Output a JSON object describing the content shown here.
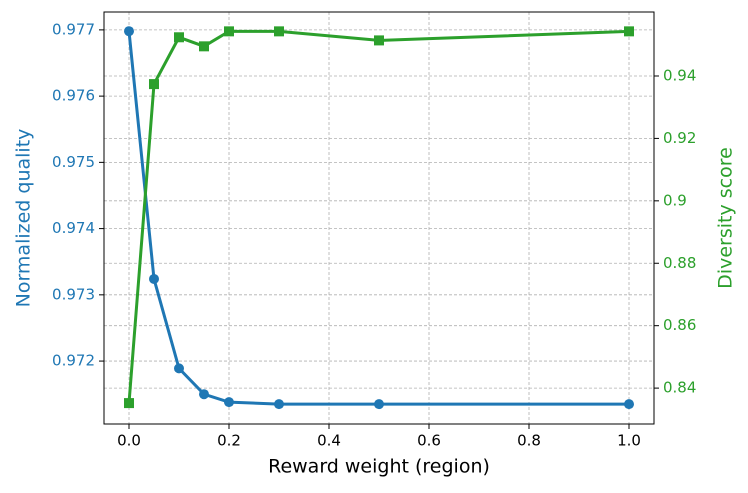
{
  "chart_data": {
    "type": "line",
    "xlabel": "Reward weight (region)",
    "ylabel": "Normalized quality",
    "y2label": "Diversity score",
    "x": [
      0,
      0.05,
      0.1,
      0.15,
      0.2,
      0.3,
      0.5,
      1.0
    ],
    "series": [
      {
        "color": "#1f77b4",
        "marker": "circle",
        "values": [
          0.97698,
          0.97324,
          0.97189,
          0.9715,
          0.97138,
          0.97135,
          0.97135,
          0.97135
        ]
      },
      {
        "color": "#2ca02c",
        "marker": "square",
        "axis": "y2",
        "values": [
          0.8352,
          0.9374,
          0.9524,
          0.9495,
          0.9543,
          0.9543,
          0.9514,
          0.9543
        ]
      }
    ],
    "xlim": [
      -0.05,
      1.05
    ],
    "xticks": [
      {
        "value": 0,
        "label": "0.0"
      },
      0.2,
      0.4,
      0.6,
      0.8,
      {
        "value": 1,
        "label": "1.0"
      }
    ],
    "ylim": [
      0.97105,
      0.97727
    ],
    "yticks": [
      0.972,
      0.973,
      0.974,
      0.975,
      0.976,
      0.977
    ],
    "y2lim": [
      0.8285,
      0.9605
    ],
    "y2ticks": [
      0.84,
      0.86,
      0.88,
      0.9,
      0.92,
      0.94
    ],
    "grid": true
  }
}
